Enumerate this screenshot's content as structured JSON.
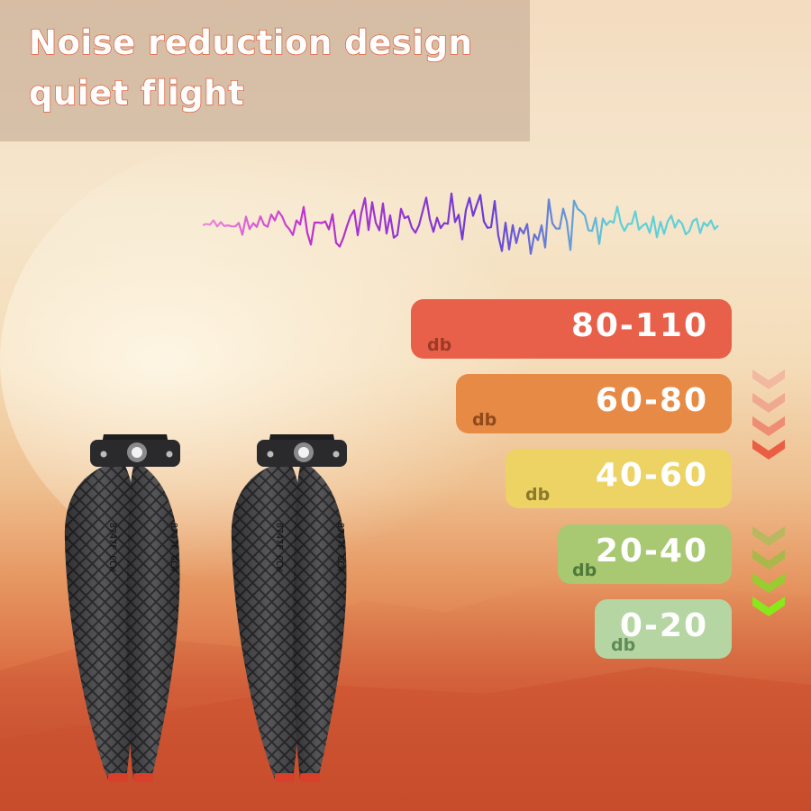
{
  "title": {
    "line1": "Noise reduction design",
    "line2": "quiet flight"
  },
  "levels": [
    {
      "range": "80-110",
      "unit": "db",
      "color": "#e8604a",
      "unit_color": "#9c3a26"
    },
    {
      "range": "60-80",
      "unit": "db",
      "color": "#e68a45",
      "unit_color": "#8f4a1c"
    },
    {
      "range": "40-60",
      "unit": "db",
      "color": "#edd264",
      "unit_color": "#8a7a2a"
    },
    {
      "range": "20-40",
      "unit": "db",
      "color": "#a8c872",
      "unit_color": "#4f7a3a"
    },
    {
      "range": "0-20",
      "unit": "db",
      "color": "#b5d6a2",
      "unit_color": "#5f8a5a"
    }
  ],
  "chevrons": {
    "decreasing_colors": [
      "#f2b8a0",
      "#f0a890",
      "#ef8c74",
      "#ea5e44"
    ],
    "quiet_colors": [
      "#b9b860",
      "#a9b848",
      "#98cc30",
      "#88e81a"
    ]
  },
  "waveform": {
    "colors": [
      "#f08ad8",
      "#c030d0",
      "#6a3ad8",
      "#60d0d8"
    ]
  },
  "propellers": {
    "blade_label": "8747F CCW",
    "tip_color": "#d8402c"
  }
}
